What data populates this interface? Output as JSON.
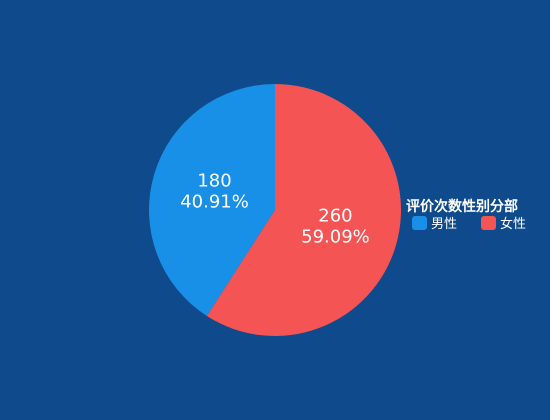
{
  "chart_data": {
    "type": "pie",
    "legend_title": "评价次数性别分部",
    "legend_position": "right",
    "slices": [
      {
        "name": "男性",
        "value": 180,
        "percent": "40.91%",
        "color": "#1890e8"
      },
      {
        "name": "女性",
        "value": 260,
        "percent": "59.09%",
        "color": "#f45454"
      }
    ]
  },
  "colors": {
    "background": "#0e4a8c"
  }
}
